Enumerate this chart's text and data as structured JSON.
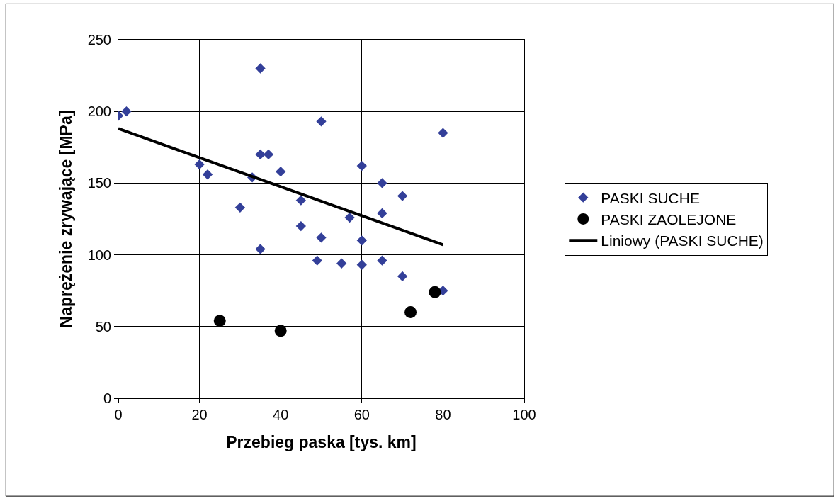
{
  "chart_data": {
    "type": "scatter",
    "xlabel": "Przebieg paska [tys. km]",
    "ylabel": "Naprężenie zrywające [MPa]",
    "xlim": [
      0,
      100
    ],
    "xticks": [
      0,
      20,
      40,
      60,
      80,
      100
    ],
    "ylim": [
      0,
      250
    ],
    "yticks": [
      0,
      50,
      100,
      150,
      200,
      250
    ],
    "grid": true,
    "legend": "right",
    "series": [
      {
        "name": "PASKI SUCHE",
        "marker": "diamond",
        "color": "#333f99",
        "x": [
          0,
          2,
          20,
          22,
          30,
          33,
          35,
          35,
          37,
          35,
          40,
          45,
          45,
          49,
          50,
          50,
          55,
          57,
          60,
          60,
          60,
          65,
          65,
          65,
          70,
          70,
          80,
          80
        ],
        "values": [
          197,
          200,
          163,
          156,
          133,
          154,
          230,
          170,
          170,
          104,
          158,
          138,
          120,
          96,
          193,
          112,
          94,
          126,
          162,
          110,
          93,
          150,
          129,
          96,
          141,
          85,
          185,
          75
        ]
      },
      {
        "name": "PASKI ZAOLEJONE",
        "marker": "circle",
        "color": "#000000",
        "x": [
          25,
          40,
          72,
          78
        ],
        "values": [
          54,
          47,
          60,
          74
        ]
      },
      {
        "name": "Liniowy (PASKI SUCHE)",
        "type": "line",
        "marker": "none",
        "line_style": "solid",
        "color": "#000000",
        "x": [
          0,
          80
        ],
        "values": [
          188,
          107
        ]
      }
    ]
  }
}
